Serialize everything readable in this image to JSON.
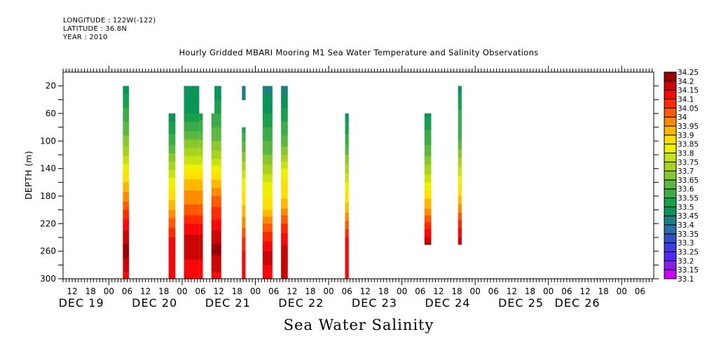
{
  "header": {
    "longitude": "LONGITUDE : 122W(-122)",
    "latitude": "LATITUDE : 36.8N",
    "year": "YEAR : 2010"
  },
  "chart_data": {
    "type": "heatmap",
    "title": "Hourly Gridded MBARI Mooring M1 Sea Water Temperature and Salinity Observations",
    "bottom_title": "Sea Water Salinity",
    "xlabel": "",
    "ylabel": "DEPTH (m)",
    "x_range_hours": [
      0,
      193.5
    ],
    "x_origin": "DEC 19 09:00",
    "ylim": [
      300,
      0
    ],
    "y_ticks": [
      20,
      60,
      100,
      140,
      180,
      220,
      260,
      300
    ],
    "y_tick_labels": [
      "20",
      "60",
      "100",
      "140",
      "180",
      "220",
      "260",
      "300"
    ],
    "x_hour_tick_labels": [
      {
        "hour": 3,
        "label": "12"
      },
      {
        "hour": 9,
        "label": "18"
      },
      {
        "hour": 15,
        "label": "00"
      },
      {
        "hour": 21,
        "label": "06"
      },
      {
        "hour": 27,
        "label": "12"
      },
      {
        "hour": 33,
        "label": "18"
      },
      {
        "hour": 39,
        "label": "00"
      },
      {
        "hour": 45,
        "label": "06"
      },
      {
        "hour": 51,
        "label": "12"
      },
      {
        "hour": 57,
        "label": "18"
      },
      {
        "hour": 63,
        "label": "00"
      },
      {
        "hour": 69,
        "label": "06"
      },
      {
        "hour": 75,
        "label": "12"
      },
      {
        "hour": 81,
        "label": "18"
      },
      {
        "hour": 87,
        "label": "00"
      },
      {
        "hour": 93,
        "label": "06"
      },
      {
        "hour": 99,
        "label": "12"
      },
      {
        "hour": 105,
        "label": "18"
      },
      {
        "hour": 111,
        "label": "00"
      },
      {
        "hour": 117,
        "label": "06"
      },
      {
        "hour": 123,
        "label": "12"
      },
      {
        "hour": 129,
        "label": "18"
      },
      {
        "hour": 135,
        "label": "00"
      },
      {
        "hour": 141,
        "label": "06"
      },
      {
        "hour": 147,
        "label": "12"
      },
      {
        "hour": 153,
        "label": "18"
      },
      {
        "hour": 159,
        "label": "00"
      },
      {
        "hour": 165,
        "label": "06"
      },
      {
        "hour": 171,
        "label": "12"
      },
      {
        "hour": 177,
        "label": "18"
      },
      {
        "hour": 183,
        "label": "00"
      },
      {
        "hour": 189,
        "label": "06"
      }
    ],
    "x_day_labels": [
      {
        "hour": 6,
        "label": "DEC 19"
      },
      {
        "hour": 30,
        "label": "DEC 20"
      },
      {
        "hour": 54,
        "label": "DEC 21"
      },
      {
        "hour": 78,
        "label": "DEC 22"
      },
      {
        "hour": 102,
        "label": "DEC 23"
      },
      {
        "hour": 126,
        "label": "DEC 24"
      },
      {
        "hour": 150,
        "label": "DEC 25"
      },
      {
        "hour": 168.5,
        "label": "DEC 26"
      }
    ],
    "colorbar": {
      "levels": [
        33.1,
        33.15,
        33.2,
        33.25,
        33.3,
        33.35,
        33.4,
        33.45,
        33.5,
        33.55,
        33.6,
        33.65,
        33.7,
        33.75,
        33.8,
        33.85,
        33.9,
        33.95,
        34,
        34.05,
        34.1,
        34.15,
        34.2,
        34.25
      ],
      "labels": [
        "33.1",
        "33.15",
        "33.2",
        "33.25",
        "33.3",
        "33.35",
        "33.4",
        "33.45",
        "33.5",
        "33.55",
        "33.6",
        "33.65",
        "33.7",
        "33.75",
        "33.8",
        "33.85",
        "33.9",
        "33.95",
        "34",
        "34.05",
        "34.1",
        "34.15",
        "34.2",
        "34.25"
      ],
      "colors": [
        "#cc00ff",
        "#8a1cf0",
        "#5028fa",
        "#3c3ce6",
        "#3050c8",
        "#2a6ea8",
        "#1a8080",
        "#0a9458",
        "#18a04e",
        "#3aac48",
        "#5ab840",
        "#88c82c",
        "#a8d41c",
        "#c8e410",
        "#eef000",
        "#ffe000",
        "#ffb800",
        "#ff8c00",
        "#ff5a00",
        "#ff2a00",
        "#f80808",
        "#cc0404",
        "#9a0000"
      ]
    },
    "profiles": [
      {
        "start_hour": 19.6,
        "end_hour": 21.6,
        "top_depth": 20,
        "bottom_depth": 300,
        "depths": [
          20,
          40,
          60,
          80,
          100,
          120,
          140,
          160,
          180,
          200,
          220,
          240,
          260,
          280,
          300
        ],
        "values": [
          33.47,
          33.52,
          33.57,
          33.62,
          33.67,
          33.74,
          33.82,
          33.9,
          33.97,
          34.05,
          34.12,
          34.18,
          34.22,
          34.18,
          34.12
        ]
      },
      {
        "start_hour": 34.6,
        "end_hour": 36.8,
        "top_depth": 60,
        "bottom_depth": 300,
        "depths": [
          60,
          80,
          100,
          120,
          140,
          160,
          180,
          200,
          220,
          240,
          260,
          280,
          300
        ],
        "values": [
          33.47,
          33.52,
          33.58,
          33.66,
          33.74,
          33.82,
          33.88,
          33.95,
          34.03,
          34.1,
          34.12,
          34.12,
          34.12
        ]
      },
      {
        "start_hour": 39.6,
        "end_hour": 44.6,
        "top_depth": 20,
        "bottom_depth": 300,
        "depths": [
          20,
          40,
          60,
          80,
          100,
          120,
          140,
          160,
          180,
          200,
          220,
          240,
          260,
          280,
          300
        ],
        "values": [
          33.47,
          33.47,
          33.5,
          33.58,
          33.66,
          33.74,
          33.83,
          33.92,
          33.97,
          34.02,
          34.1,
          34.16,
          34.18,
          34.13,
          34.12
        ]
      },
      {
        "start_hour": 44.6,
        "end_hour": 45.8,
        "top_depth": 60,
        "bottom_depth": 300,
        "depths": [
          60,
          80,
          100,
          120,
          140,
          160,
          180,
          200,
          220,
          240,
          260,
          280,
          300
        ],
        "values": [
          33.52,
          33.58,
          33.66,
          33.74,
          33.83,
          33.92,
          33.97,
          34.02,
          34.1,
          34.16,
          34.18,
          34.13,
          34.12
        ]
      },
      {
        "start_hour": 48.6,
        "end_hour": 49.6,
        "top_depth": 60,
        "bottom_depth": 300,
        "depths": [
          60,
          80,
          100,
          120,
          140,
          160,
          180,
          200,
          220,
          240,
          260,
          280,
          300
        ],
        "values": [
          33.55,
          33.6,
          33.65,
          33.72,
          33.82,
          33.92,
          34.0,
          34.06,
          34.12,
          34.18,
          34.22,
          34.16,
          34.14
        ]
      },
      {
        "start_hour": 49.6,
        "end_hour": 51.8,
        "top_depth": 20,
        "bottom_depth": 300,
        "depths": [
          20,
          40,
          60,
          80,
          100,
          120,
          140,
          160,
          180,
          200,
          220,
          240,
          260,
          280,
          300
        ],
        "values": [
          33.47,
          33.5,
          33.55,
          33.6,
          33.65,
          33.72,
          33.82,
          33.92,
          34.0,
          34.06,
          34.12,
          34.18,
          34.22,
          34.16,
          34.14
        ]
      },
      {
        "start_hour": 58.6,
        "end_hour": 59.8,
        "top_depth": 20,
        "bottom_depth": 40,
        "depths": [
          20,
          40
        ],
        "values": [
          33.42,
          33.45
        ]
      },
      {
        "start_hour": 58.6,
        "end_hour": 59.8,
        "top_depth": 80,
        "bottom_depth": 300,
        "depths": [
          80,
          100,
          120,
          140,
          160,
          180,
          200,
          220,
          240,
          260,
          280,
          300
        ],
        "values": [
          33.52,
          33.6,
          33.66,
          33.74,
          33.82,
          33.86,
          33.92,
          33.98,
          34.05,
          34.1,
          34.12,
          34.12
        ]
      },
      {
        "start_hour": 65.4,
        "end_hour": 68.6,
        "top_depth": 20,
        "bottom_depth": 300,
        "depths": [
          20,
          40,
          60,
          80,
          100,
          120,
          140,
          160,
          180,
          200,
          220,
          240,
          260,
          280,
          300
        ],
        "values": [
          33.42,
          33.47,
          33.5,
          33.55,
          33.6,
          33.65,
          33.72,
          33.8,
          33.85,
          33.9,
          34.0,
          34.08,
          34.15,
          34.15,
          34.12
        ]
      },
      {
        "start_hour": 71.4,
        "end_hour": 73.6,
        "top_depth": 20,
        "bottom_depth": 300,
        "depths": [
          20,
          40,
          60,
          80,
          100,
          120,
          140,
          160,
          180,
          200,
          220,
          240,
          260,
          280,
          300
        ],
        "values": [
          33.42,
          33.47,
          33.52,
          33.57,
          33.62,
          33.7,
          33.8,
          33.86,
          33.88,
          33.96,
          34.05,
          34.12,
          34.17,
          34.15,
          34.15
        ]
      },
      {
        "start_hour": 92.4,
        "end_hour": 93.6,
        "top_depth": 60,
        "bottom_depth": 300,
        "depths": [
          60,
          80,
          100,
          120,
          140,
          160,
          180,
          200,
          220,
          240,
          260,
          280,
          300
        ],
        "values": [
          33.47,
          33.52,
          33.58,
          33.65,
          33.72,
          33.8,
          33.87,
          33.93,
          34.02,
          34.1,
          34.12,
          34.12,
          34.12
        ]
      },
      {
        "start_hour": 118.4,
        "end_hour": 120.6,
        "top_depth": 60,
        "bottom_depth": 250,
        "depths": [
          60,
          80,
          100,
          120,
          140,
          160,
          180,
          200,
          220,
          240,
          250
        ],
        "values": [
          33.48,
          33.54,
          33.58,
          33.64,
          33.72,
          33.8,
          33.88,
          33.96,
          34.06,
          34.15,
          34.22
        ]
      },
      {
        "start_hour": 129.4,
        "end_hour": 130.6,
        "top_depth": 20,
        "bottom_depth": 250,
        "depths": [
          20,
          40,
          60,
          80,
          100,
          120,
          140,
          160,
          180,
          200,
          220,
          240,
          250
        ],
        "values": [
          33.47,
          33.52,
          33.56,
          33.57,
          33.6,
          33.68,
          33.76,
          33.84,
          33.9,
          33.98,
          34.08,
          34.15,
          34.2
        ]
      }
    ]
  }
}
